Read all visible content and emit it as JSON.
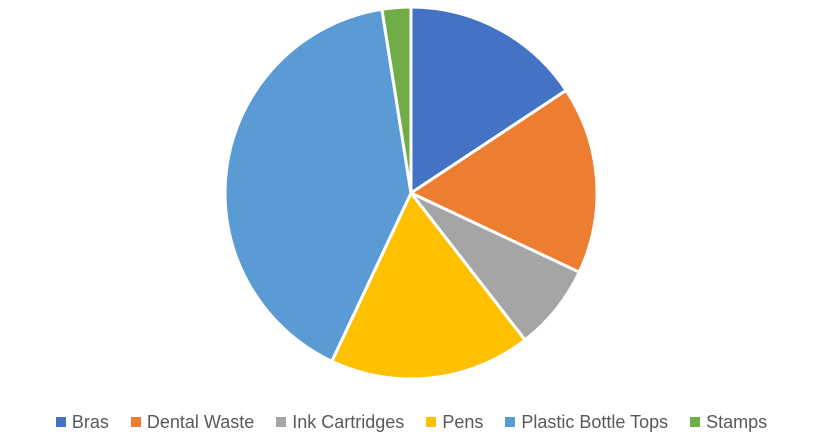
{
  "chart_data": {
    "type": "pie",
    "title": "",
    "legend_position": "bottom",
    "categories": [
      "Bras",
      "Dental Waste",
      "Ink Cartridges",
      "Pens",
      "Plastic Bottle Tops",
      "Stamps"
    ],
    "values": [
      15.7,
      16.3,
      7.5,
      17.5,
      40.5,
      2.5
    ],
    "colors": [
      "#4472C4",
      "#ED7D31",
      "#A5A5A5",
      "#FFC000",
      "#5B9BD5",
      "#70AD47"
    ]
  }
}
